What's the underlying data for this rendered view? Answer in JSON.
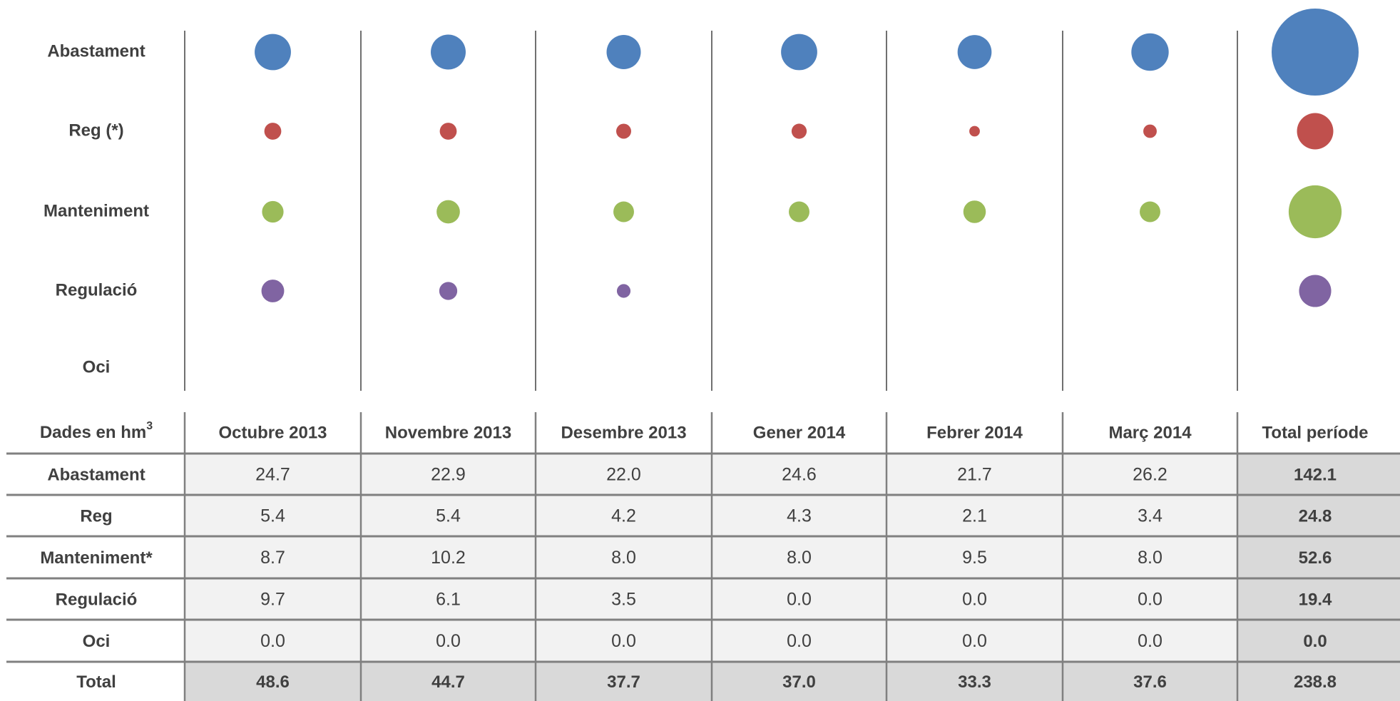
{
  "chart_data": {
    "type": "bubble",
    "categories": [
      "Octubre 2013",
      "Novembre 2013",
      "Desembre 2013",
      "Gener 2014",
      "Febrer 2014",
      "Març 2014",
      "Total període"
    ],
    "header_label": "Dades en hm",
    "header_sup": "3",
    "series": [
      {
        "name": "Abastament",
        "table_label": "Abastament",
        "color": "#4f81bd",
        "values": [
          24.7,
          22.9,
          22.0,
          24.6,
          21.7,
          26.2,
          142.1
        ],
        "value_labels": [
          "24.7",
          "22.9",
          "22.0",
          "24.6",
          "21.7",
          "26.2",
          "142.1"
        ]
      },
      {
        "name": "Reg (*)",
        "table_label": "Reg",
        "color": "#c0504d",
        "values": [
          5.4,
          5.4,
          4.2,
          4.3,
          2.1,
          3.4,
          24.8
        ],
        "value_labels": [
          "5.4",
          "5.4",
          "4.2",
          "4.3",
          "2.1",
          "3.4",
          "24.8"
        ]
      },
      {
        "name": "Manteniment",
        "table_label": "Manteniment*",
        "color": "#9bbb59",
        "values": [
          8.7,
          10.2,
          8.0,
          8.0,
          9.5,
          8.0,
          52.6
        ],
        "value_labels": [
          "8.7",
          "10.2",
          "8.0",
          "8.0",
          "9.5",
          "8.0",
          "52.6"
        ]
      },
      {
        "name": "Regulació",
        "table_label": "Regulació",
        "color": "#8064a2",
        "values": [
          9.7,
          6.1,
          3.5,
          0,
          0,
          0,
          19.4
        ],
        "value_labels": [
          "9.7",
          "6.1",
          "3.5",
          "0.0",
          "0.0",
          "0.0",
          "19.4"
        ]
      },
      {
        "name": "Oci",
        "table_label": "Oci",
        "values": [
          0,
          0,
          0,
          0,
          0,
          0,
          0
        ],
        "value_labels": [
          "0.0",
          "0.0",
          "0.0",
          "0.0",
          "0.0",
          "0.0",
          "0.0"
        ]
      }
    ],
    "totals": {
      "name": "Total",
      "values": [
        48.6,
        44.7,
        37.7,
        37.0,
        33.3,
        37.6,
        238.8
      ],
      "value_labels": [
        "48.6",
        "44.7",
        "37.7",
        "37.0",
        "33.3",
        "37.6",
        "238.8"
      ]
    }
  }
}
